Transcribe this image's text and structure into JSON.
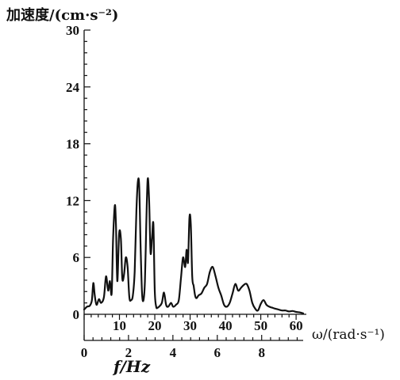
{
  "chart_data": {
    "type": "line",
    "ylabel": "加速度/(cm·s⁻²)",
    "xlabel_omega": "ω/(rad·s⁻¹)",
    "xlabel_f": "f/Hz",
    "y_ticks": [
      "0",
      "6",
      "12",
      "18",
      "24",
      "30"
    ],
    "omega_ticks": [
      "10",
      "20",
      "30",
      "40",
      "50",
      "60"
    ],
    "f_ticks": [
      "0",
      "2",
      "4",
      "6",
      "8"
    ],
    "ylim": [
      0,
      30
    ],
    "omega_lim": [
      0,
      62
    ],
    "f_lim": [
      0,
      9.87
    ],
    "grid": false,
    "series": [
      {
        "x_unit": "rad/s",
        "x": [
          0,
          0.8,
          1.6,
          2.2,
          2.6,
          3.0,
          3.5,
          4.2,
          4.8,
          5.6,
          6.2,
          6.8,
          7.3,
          7.8,
          8.2,
          8.7,
          9.0,
          9.4,
          9.9,
          10.4,
          10.8,
          11.3,
          11.8,
          12.3,
          12.8,
          13.3,
          13.8,
          14.3,
          14.8,
          15.2,
          15.6,
          16.0,
          16.4,
          16.8,
          17.2,
          17.6,
          18.0,
          18.4,
          18.8,
          19.2,
          19.6,
          20.0,
          20.4,
          20.8,
          21.2,
          22.0,
          22.6,
          23.2,
          23.8,
          24.6,
          25.2,
          26.0,
          26.8,
          27.4,
          28.0,
          28.6,
          29.0,
          29.4,
          29.8,
          30.2,
          30.6,
          31.0,
          31.4,
          31.8,
          32.4,
          33.2,
          34.0,
          34.8,
          35.6,
          36.4,
          37.2,
          38.0,
          38.8,
          39.6,
          40.4,
          41.2,
          42.0,
          42.8,
          43.6,
          44.4,
          45.2,
          46.0,
          46.8,
          47.6,
          48.4,
          49.2,
          50.0,
          50.8,
          51.6,
          52.4,
          53.2,
          54.0,
          55.0,
          56.0,
          57.0,
          58.0,
          59.0,
          60.0,
          61.0,
          62.0
        ],
        "y": [
          0.5,
          0.8,
          0.9,
          1.5,
          3.3,
          2.0,
          1.0,
          1.6,
          1.2,
          1.8,
          4.0,
          2.5,
          3.5,
          2.2,
          8.0,
          11.5,
          9.5,
          3.5,
          8.5,
          8.0,
          3.8,
          4.2,
          6.0,
          5.0,
          1.8,
          1.5,
          2.0,
          4.5,
          11.0,
          14.0,
          13.5,
          7.0,
          2.2,
          1.5,
          3.5,
          9.5,
          14.3,
          12.0,
          6.5,
          8.0,
          9.5,
          2.5,
          0.8,
          0.7,
          0.8,
          1.2,
          2.3,
          1.0,
          0.8,
          1.2,
          0.8,
          1.0,
          1.5,
          3.8,
          6.0,
          5.0,
          6.8,
          5.5,
          10.2,
          9.5,
          4.0,
          3.0,
          2.0,
          1.7,
          2.0,
          2.2,
          2.8,
          3.2,
          4.5,
          5.0,
          4.0,
          2.8,
          2.0,
          1.0,
          0.8,
          1.2,
          2.2,
          3.2,
          2.5,
          2.8,
          3.1,
          3.2,
          2.5,
          1.2,
          0.6,
          0.4,
          1.1,
          1.5,
          1.0,
          0.8,
          0.7,
          0.6,
          0.5,
          0.4,
          0.4,
          0.3,
          0.35,
          0.25,
          0.2,
          0.1
        ]
      }
    ]
  }
}
